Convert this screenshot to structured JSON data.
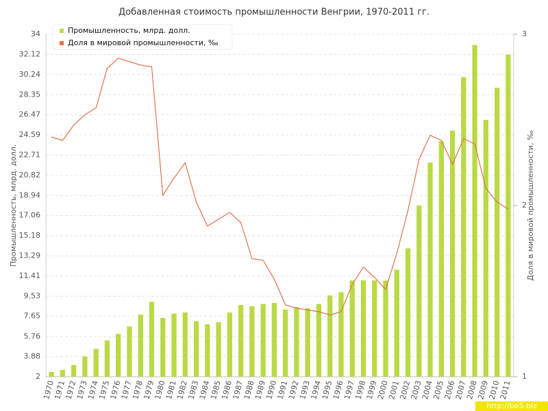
{
  "chart_data": {
    "type": "bar",
    "title": "Добавленная стоимость промышленности Венгрии, 1970-2011 гг.",
    "y_label": "Промышленность, млрд. долл.",
    "y2_label": "Доля в мировой промышленности, ‰",
    "watermark": "http://be5.biz",
    "categories": [
      "1970",
      "1971",
      "1972",
      "1973",
      "1974",
      "1975",
      "1976",
      "1977",
      "1978",
      "1979",
      "1980",
      "1981",
      "1982",
      "1983",
      "1984",
      "1985",
      "1986",
      "1987",
      "1988",
      "1989",
      "1990",
      "1991",
      "1992",
      "1993",
      "1994",
      "1995",
      "1996",
      "1997",
      "1998",
      "1999",
      "2000",
      "2001",
      "2002",
      "2003",
      "2004",
      "2005",
      "2006",
      "2007",
      "2008",
      "2009",
      "2010",
      "2011"
    ],
    "series": [
      {
        "name": "Промышленность, млрд. долл.",
        "type": "bar",
        "color": "#bada45",
        "values": [
          2.45,
          2.64,
          3.1,
          3.9,
          4.6,
          5.4,
          6.0,
          6.7,
          7.8,
          9.0,
          7.5,
          7.9,
          8.0,
          7.2,
          6.9,
          7.1,
          8.0,
          8.7,
          8.6,
          8.8,
          8.9,
          8.3,
          8.5,
          8.4,
          8.8,
          9.6,
          9.9,
          11.0,
          11.0,
          11.0,
          11.0,
          12.0,
          14.0,
          18.0,
          22.0,
          24.0,
          25.0,
          30.0,
          33.0,
          26.0,
          29.0,
          32.1
        ]
      },
      {
        "name": "Доля в мировой промышленности, ‰",
        "type": "line",
        "axis": "y2",
        "color": "#e0714a",
        "values": [
          2.4,
          2.38,
          2.47,
          2.53,
          2.57,
          2.8,
          2.86,
          2.84,
          2.82,
          2.81,
          2.06,
          2.16,
          2.25,
          2.02,
          1.88,
          1.92,
          1.96,
          1.9,
          1.69,
          1.68,
          1.57,
          1.42,
          1.4,
          1.39,
          1.38,
          1.36,
          1.38,
          1.54,
          1.64,
          1.58,
          1.51,
          1.72,
          1.97,
          2.27,
          2.41,
          2.38,
          2.24,
          2.39,
          2.36,
          2.1,
          2.02,
          1.98
        ]
      }
    ],
    "ylim": [
      2,
      34
    ],
    "yticks": [
      2,
      3.88,
      5.76,
      7.65,
      9.53,
      11.41,
      13.29,
      15.18,
      17.06,
      18.94,
      20.82,
      22.71,
      24.59,
      26.47,
      28.35,
      30.24,
      32.12,
      34
    ],
    "y2lim": [
      1,
      3
    ],
    "y2ticks": [
      1,
      2,
      3
    ],
    "grid": true,
    "legend": "top-left"
  }
}
